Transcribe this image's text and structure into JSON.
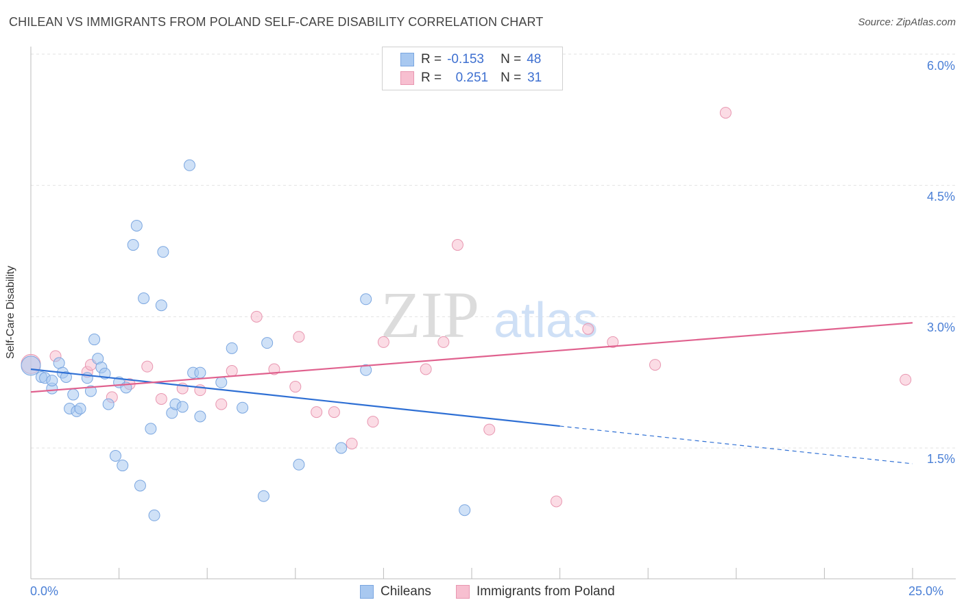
{
  "title": "CHILEAN VS IMMIGRANTS FROM POLAND SELF-CARE DISABILITY CORRELATION CHART",
  "source": "Source: ZipAtlas.com",
  "watermark": {
    "zip": "ZIP",
    "atlas": "atlas"
  },
  "legend": {
    "rows": [
      {
        "r_label": "R =",
        "r_value": "-0.153",
        "n_label": "N =",
        "n_value": "48"
      },
      {
        "r_label": "R =",
        "r_value": "0.251",
        "n_label": "N =",
        "n_value": "31"
      }
    ]
  },
  "bottom_legend": {
    "chileans": "Chileans",
    "poland": "Immigrants from Poland"
  },
  "colors": {
    "blue_fill": "#a8c8f0",
    "blue_stroke": "#7aa6e0",
    "blue_line": "#2e6fd4",
    "pink_fill": "#f7bfd0",
    "pink_stroke": "#e896b0",
    "pink_line": "#e0618e",
    "tick_text": "#4a7fd6",
    "grid": "#e2e2e2"
  },
  "chart_data": {
    "type": "scatter",
    "title": "CHILEAN VS IMMIGRANTS FROM POLAND SELF-CARE DISABILITY CORRELATION CHART",
    "xlabel": "",
    "ylabel": "Self-Care Disability",
    "xlim": [
      0,
      25
    ],
    "ylim": [
      0,
      6.3
    ],
    "x_tick_labels": [
      "0.0%",
      "25.0%"
    ],
    "y_ticks": [
      1.5,
      3.0,
      4.5,
      6.0
    ],
    "y_tick_labels": [
      "1.5%",
      "3.0%",
      "4.5%",
      "6.0%"
    ],
    "series": [
      {
        "name": "Chileans",
        "color": "#a8c8f0",
        "r": -0.153,
        "n": 48,
        "points": [
          [
            0.0,
            2.44
          ],
          [
            0.3,
            2.31
          ],
          [
            0.4,
            2.3
          ],
          [
            0.6,
            2.18
          ],
          [
            0.6,
            2.27
          ],
          [
            0.8,
            2.47
          ],
          [
            0.9,
            2.36
          ],
          [
            1.0,
            2.31
          ],
          [
            1.1,
            1.95
          ],
          [
            1.2,
            2.11
          ],
          [
            1.3,
            1.92
          ],
          [
            1.4,
            1.95
          ],
          [
            1.6,
            2.3
          ],
          [
            1.7,
            2.15
          ],
          [
            1.8,
            2.74
          ],
          [
            1.9,
            2.52
          ],
          [
            2.0,
            2.42
          ],
          [
            2.1,
            2.35
          ],
          [
            2.2,
            2.0
          ],
          [
            2.4,
            1.41
          ],
          [
            2.5,
            2.25
          ],
          [
            2.6,
            1.3
          ],
          [
            2.7,
            2.19
          ],
          [
            2.9,
            3.82
          ],
          [
            3.0,
            4.04
          ],
          [
            3.1,
            1.07
          ],
          [
            3.2,
            3.21
          ],
          [
            3.4,
            1.72
          ],
          [
            3.5,
            0.73
          ],
          [
            3.7,
            3.13
          ],
          [
            3.75,
            3.74
          ],
          [
            4.0,
            1.9
          ],
          [
            4.1,
            2.0
          ],
          [
            4.3,
            1.97
          ],
          [
            4.5,
            4.73
          ],
          [
            4.6,
            2.36
          ],
          [
            4.8,
            1.86
          ],
          [
            4.8,
            2.36
          ],
          [
            5.4,
            2.25
          ],
          [
            5.7,
            2.64
          ],
          [
            6.0,
            1.96
          ],
          [
            6.6,
            0.95
          ],
          [
            6.7,
            2.7
          ],
          [
            7.6,
            1.31
          ],
          [
            8.8,
            1.5
          ],
          [
            9.5,
            3.2
          ],
          [
            9.5,
            2.39
          ],
          [
            12.3,
            0.79
          ]
        ],
        "trend": {
          "x0": 0,
          "y0": 2.4,
          "x1": 15,
          "y1": 1.75,
          "dashed_to_x": 25,
          "dashed_to_y": 1.32
        }
      },
      {
        "name": "Immigrants from Poland",
        "color": "#f7bfd0",
        "r": 0.251,
        "n": 31,
        "points": [
          [
            0.0,
            2.46
          ],
          [
            0.7,
            2.55
          ],
          [
            1.6,
            2.37
          ],
          [
            1.7,
            2.45
          ],
          [
            2.3,
            2.08
          ],
          [
            2.8,
            2.23
          ],
          [
            3.3,
            2.43
          ],
          [
            3.7,
            2.06
          ],
          [
            4.3,
            2.18
          ],
          [
            4.8,
            2.16
          ],
          [
            5.4,
            2.0
          ],
          [
            5.7,
            2.38
          ],
          [
            6.4,
            3.0
          ],
          [
            6.9,
            2.4
          ],
          [
            7.5,
            2.2
          ],
          [
            7.6,
            2.77
          ],
          [
            8.1,
            1.91
          ],
          [
            8.6,
            1.91
          ],
          [
            9.1,
            1.55
          ],
          [
            9.7,
            1.8
          ],
          [
            10.0,
            2.71
          ],
          [
            11.2,
            2.4
          ],
          [
            11.7,
            2.71
          ],
          [
            12.1,
            3.82
          ],
          [
            13.0,
            1.71
          ],
          [
            14.9,
            0.89
          ],
          [
            15.8,
            2.86
          ],
          [
            16.5,
            2.71
          ],
          [
            17.7,
            2.45
          ],
          [
            19.7,
            5.33
          ],
          [
            24.8,
            2.28
          ]
        ],
        "trend": {
          "x0": 0,
          "y0": 2.14,
          "x1": 25,
          "y1": 2.93
        }
      }
    ]
  }
}
